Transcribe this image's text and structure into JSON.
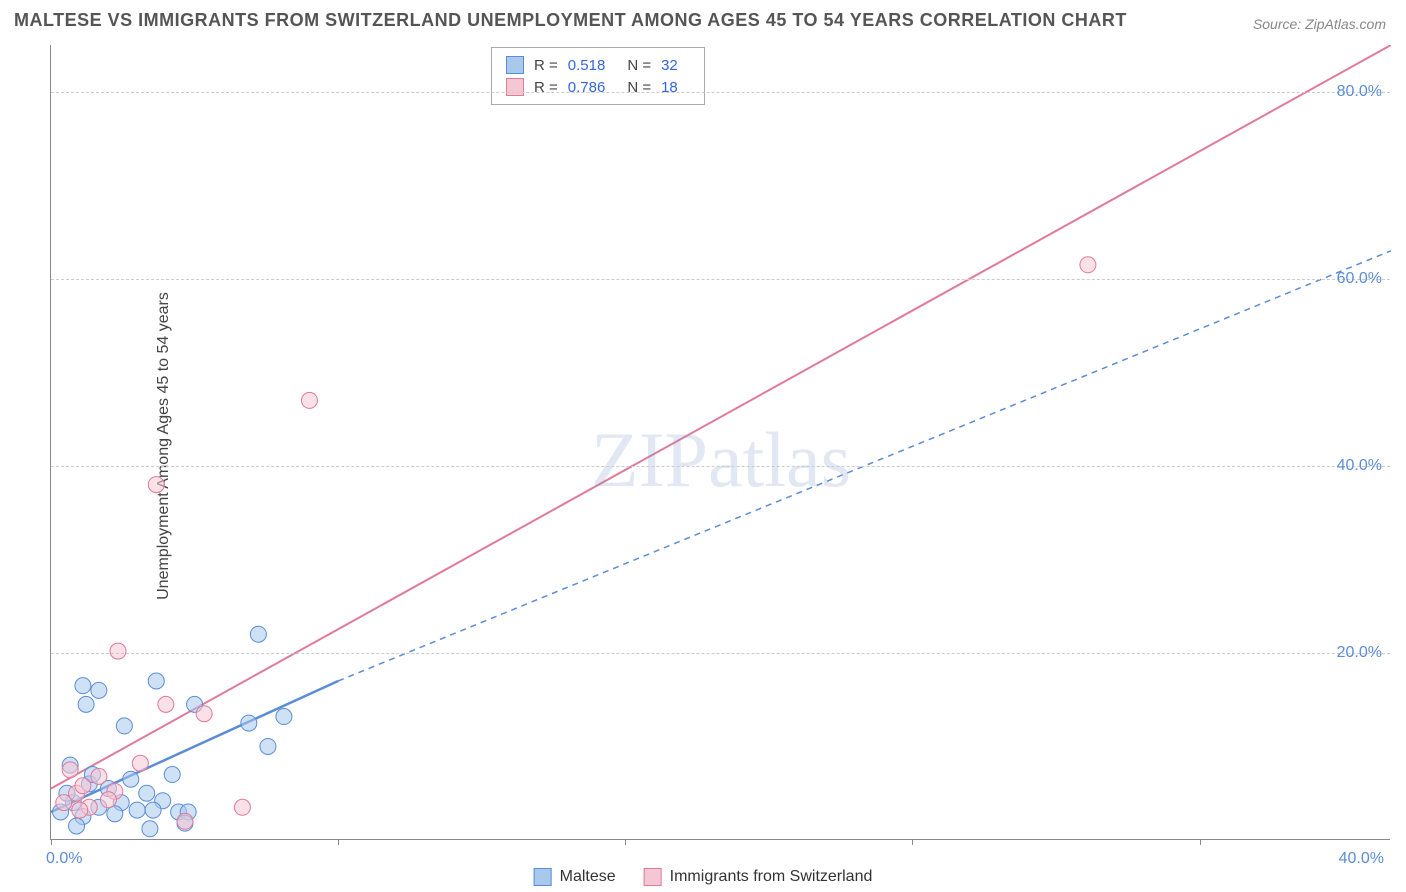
{
  "title": "MALTESE VS IMMIGRANTS FROM SWITZERLAND UNEMPLOYMENT AMONG AGES 45 TO 54 YEARS CORRELATION CHART",
  "source": "Source: ZipAtlas.com",
  "ylabel": "Unemployment Among Ages 45 to 54 years",
  "watermark": "ZIPatlas",
  "chart": {
    "type": "scatter-with-regression",
    "xlim": [
      0,
      42
    ],
    "ylim": [
      0,
      85
    ],
    "xticks": [
      0,
      40
    ],
    "xtick_labels": [
      "0.0%",
      "40.0%"
    ],
    "yticks": [
      20,
      40,
      60,
      80
    ],
    "ytick_labels": [
      "20.0%",
      "40.0%",
      "60.0%",
      "80.0%"
    ],
    "xtick_marks": [
      0,
      9,
      18,
      27,
      36
    ],
    "background_color": "#ffffff",
    "grid_color": "#cccccc",
    "axis_color": "#888888",
    "tick_label_color": "#5b8dd6",
    "marker_radius": 8,
    "marker_opacity": 0.55,
    "series": [
      {
        "name": "Maltese",
        "color_fill": "#a8c8ec",
        "color_stroke": "#5b8dd6",
        "R": "0.518",
        "N": "32",
        "line_solid": {
          "x1": 0,
          "y1": 3,
          "x2": 9,
          "y2": 17,
          "width": 2.5
        },
        "line_dashed": {
          "x1": 9,
          "y1": 17,
          "x2": 42,
          "y2": 63,
          "width": 1.5,
          "dash": "6,5"
        },
        "points": [
          [
            0.3,
            3
          ],
          [
            0.7,
            4
          ],
          [
            1.0,
            2.5
          ],
          [
            1.2,
            6
          ],
          [
            0.5,
            5
          ],
          [
            1.5,
            3.5
          ],
          [
            1.8,
            5.5
          ],
          [
            2.2,
            4
          ],
          [
            0.8,
            1.5
          ],
          [
            1.3,
            7
          ],
          [
            2.0,
            2.8
          ],
          [
            2.5,
            6.5
          ],
          [
            3.0,
            5
          ],
          [
            3.5,
            4.2
          ],
          [
            4.0,
            3
          ],
          [
            0.6,
            8
          ],
          [
            1.1,
            14.5
          ],
          [
            1.0,
            16.5
          ],
          [
            1.5,
            16
          ],
          [
            2.3,
            12.2
          ],
          [
            3.3,
            17
          ],
          [
            4.5,
            14.5
          ],
          [
            6.2,
            12.5
          ],
          [
            6.5,
            22
          ],
          [
            6.8,
            10
          ],
          [
            7.3,
            13.2
          ],
          [
            3.1,
            1.2
          ],
          [
            4.3,
            3.0
          ],
          [
            3.8,
            7
          ],
          [
            2.7,
            3.2
          ],
          [
            3.2,
            3.2
          ],
          [
            4.2,
            1.8
          ]
        ]
      },
      {
        "name": "Immigrants from Switzerland",
        "color_fill": "#f5c6d4",
        "color_stroke": "#e07a9a",
        "R": "0.786",
        "N": "18",
        "line_solid": {
          "x1": 0,
          "y1": 5.5,
          "x2": 42,
          "y2": 85,
          "width": 2
        },
        "points": [
          [
            0.4,
            4
          ],
          [
            0.8,
            5
          ],
          [
            1.2,
            3.5
          ],
          [
            1.5,
            6.8
          ],
          [
            0.6,
            7.5
          ],
          [
            2.0,
            5.2
          ],
          [
            2.1,
            20.2
          ],
          [
            3.6,
            14.5
          ],
          [
            4.8,
            13.5
          ],
          [
            6.0,
            3.5
          ],
          [
            3.3,
            38
          ],
          [
            8.1,
            47
          ],
          [
            32.5,
            61.5
          ],
          [
            1.0,
            5.8
          ],
          [
            1.8,
            4.3
          ],
          [
            4.2,
            2.0
          ],
          [
            2.8,
            8.2
          ],
          [
            0.9,
            3.2
          ]
        ]
      }
    ]
  },
  "legend_top": {
    "r_label": "R =",
    "n_label": "N ="
  },
  "legend_bottom": {
    "items": [
      "Maltese",
      "Immigrants from Switzerland"
    ]
  }
}
